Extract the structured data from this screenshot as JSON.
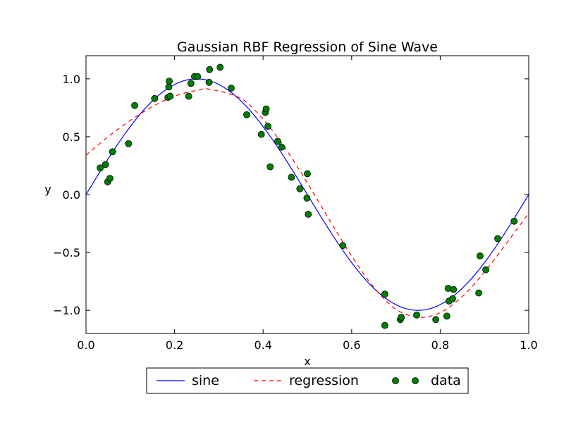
{
  "chart_data": {
    "type": "line",
    "title": "Gaussian RBF Regression of Sine Wave",
    "xlabel": "x",
    "ylabel": "y",
    "xlim": [
      0.0,
      1.0
    ],
    "ylim": [
      -1.2,
      1.2
    ],
    "x_ticks": [
      "0.0",
      "0.2",
      "0.4",
      "0.6",
      "0.8",
      "1.0"
    ],
    "y_ticks": [
      "−1.0",
      "−0.5",
      "0.0",
      "0.5",
      "1.0"
    ],
    "grid": false,
    "legend_position": "bottom-center, below axes",
    "series": [
      {
        "name": "sine",
        "style": "solid line",
        "color": "#0000ff",
        "function": "sin(2*pi*x)"
      },
      {
        "name": "regression",
        "style": "dashed line",
        "color": "#ff0000",
        "x": [
          0.0,
          0.05,
          0.1,
          0.15,
          0.2,
          0.25,
          0.28,
          0.35,
          0.4,
          0.45,
          0.5,
          0.55,
          0.6,
          0.65,
          0.7,
          0.75,
          0.8,
          0.85,
          0.9,
          0.95,
          1.0
        ],
        "y": [
          0.34,
          0.5,
          0.64,
          0.76,
          0.85,
          0.9,
          0.91,
          0.83,
          0.65,
          0.4,
          0.1,
          -0.22,
          -0.53,
          -0.8,
          -0.99,
          -1.06,
          -1.02,
          -0.88,
          -0.67,
          -0.42,
          -0.16
        ]
      },
      {
        "name": "data",
        "style": "markers",
        "color": "#008000",
        "points": [
          [
            0.032,
            0.23
          ],
          [
            0.044,
            0.26
          ],
          [
            0.049,
            0.11
          ],
          [
            0.054,
            0.14
          ],
          [
            0.06,
            0.37
          ],
          [
            0.096,
            0.44
          ],
          [
            0.11,
            0.77
          ],
          [
            0.155,
            0.83
          ],
          [
            0.185,
            0.84
          ],
          [
            0.187,
            0.93
          ],
          [
            0.188,
            0.98
          ],
          [
            0.19,
            0.85
          ],
          [
            0.232,
            0.85
          ],
          [
            0.237,
            0.96
          ],
          [
            0.245,
            1.02
          ],
          [
            0.252,
            1.02
          ],
          [
            0.278,
            0.97
          ],
          [
            0.279,
            1.08
          ],
          [
            0.303,
            1.1
          ],
          [
            0.328,
            0.92
          ],
          [
            0.363,
            0.69
          ],
          [
            0.396,
            0.52
          ],
          [
            0.405,
            0.71
          ],
          [
            0.407,
            0.74
          ],
          [
            0.411,
            0.59
          ],
          [
            0.416,
            0.24
          ],
          [
            0.433,
            0.46
          ],
          [
            0.442,
            0.41
          ],
          [
            0.464,
            0.15
          ],
          [
            0.483,
            0.05
          ],
          [
            0.499,
            -0.03
          ],
          [
            0.5,
            0.18
          ],
          [
            0.502,
            -0.17
          ],
          [
            0.58,
            -0.44
          ],
          [
            0.675,
            -0.86
          ],
          [
            0.675,
            -1.13
          ],
          [
            0.71,
            -1.08
          ],
          [
            0.712,
            -1.06
          ],
          [
            0.747,
            -1.04
          ],
          [
            0.79,
            -1.08
          ],
          [
            0.815,
            -1.05
          ],
          [
            0.818,
            -0.81
          ],
          [
            0.82,
            -0.92
          ],
          [
            0.828,
            -0.9
          ],
          [
            0.83,
            -0.82
          ],
          [
            0.887,
            -0.85
          ],
          [
            0.89,
            -0.53
          ],
          [
            0.903,
            -0.65
          ],
          [
            0.93,
            -0.38
          ],
          [
            0.967,
            -0.23
          ]
        ]
      }
    ]
  }
}
